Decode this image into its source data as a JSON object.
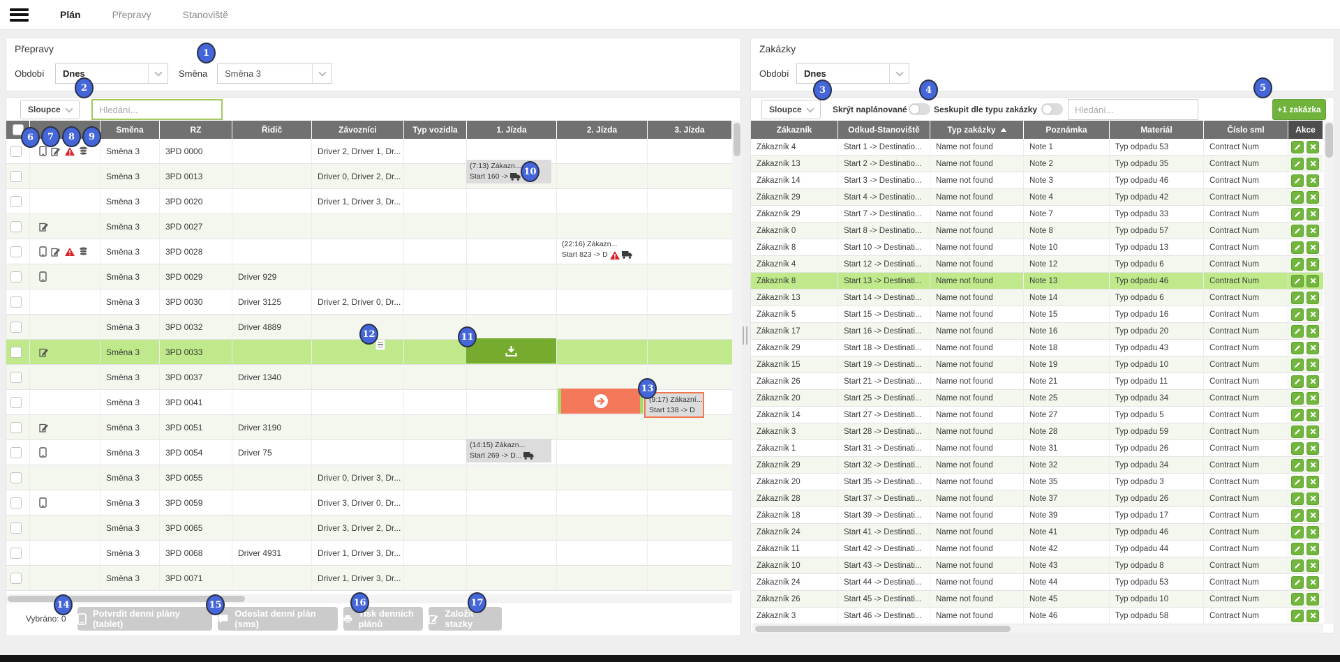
{
  "nav": {
    "tabs": [
      {
        "label": "Plán",
        "active": true
      },
      {
        "label": "Přepravy",
        "active": false
      },
      {
        "label": "Stanoviště",
        "active": false
      }
    ]
  },
  "left_panel": {
    "title": "Přepravy",
    "filters": {
      "period_label": "Období",
      "period_value": "Dnes",
      "shift_label": "Směna",
      "shift_value": "Směna 3"
    },
    "toolbar": {
      "columns_button": "Sloupce",
      "search_placeholder": "Hledání..."
    },
    "table": {
      "columns": [
        "",
        "",
        "Směna",
        "RZ",
        "Řidič",
        "Závozníci",
        "Typ vozidla",
        "1. Jízda",
        "2. Jízda",
        "3. Jízda"
      ],
      "rows": [
        {
          "shift": "Směna 3",
          "rz": "3PD 0000",
          "driver": "",
          "crew": "Driver 2, Driver 1, Dr...",
          "icons": [
            "tablet",
            "edit",
            "warning",
            "coins"
          ],
          "selected": false
        },
        {
          "shift": "Směna 3",
          "rz": "3PD 0013",
          "driver": "",
          "crew": "Driver 0, Driver 2, Dr...",
          "icons": [],
          "selected": false
        },
        {
          "shift": "Směna 3",
          "rz": "3PD 0020",
          "driver": "",
          "crew": "Driver 1, Driver 3, Dr...",
          "icons": [],
          "selected": false
        },
        {
          "shift": "Směna 3",
          "rz": "3PD 0027",
          "driver": "",
          "crew": "",
          "icons": [
            "edit"
          ],
          "selected": false
        },
        {
          "shift": "Směna 3",
          "rz": "3PD 0028",
          "driver": "",
          "crew": "",
          "icons": [
            "tablet",
            "edit",
            "warning",
            "coins"
          ],
          "selected": false
        },
        {
          "shift": "Směna 3",
          "rz": "3PD 0029",
          "driver": "Driver 929",
          "crew": "",
          "icons": [
            "tablet"
          ],
          "selected": false
        },
        {
          "shift": "Směna 3",
          "rz": "3PD 0030",
          "driver": "Driver 3125",
          "crew": "Driver 2, Driver 0, Dr...",
          "icons": [],
          "selected": false
        },
        {
          "shift": "Směna 3",
          "rz": "3PD 0032",
          "driver": "Driver 4889",
          "crew": "",
          "icons": [],
          "selected": false
        },
        {
          "shift": "Směna 3",
          "rz": "3PD 0033",
          "driver": "",
          "crew": "",
          "icons": [
            "edit"
          ],
          "selected": true
        },
        {
          "shift": "Směna 3",
          "rz": "3PD 0037",
          "driver": "Driver 1340",
          "crew": "",
          "icons": [],
          "selected": false
        },
        {
          "shift": "Směna 3",
          "rz": "3PD 0041",
          "driver": "",
          "crew": "",
          "icons": [],
          "selected": false
        },
        {
          "shift": "Směna 3",
          "rz": "3PD 0051",
          "driver": "Driver 3190",
          "crew": "",
          "icons": [
            "edit"
          ],
          "selected": false
        },
        {
          "shift": "Směna 3",
          "rz": "3PD 0054",
          "driver": "Driver 75",
          "crew": "",
          "icons": [
            "tablet"
          ],
          "selected": false
        },
        {
          "shift": "Směna 3",
          "rz": "3PD 0055",
          "driver": "",
          "crew": "Driver 0, Driver 3, Dr...",
          "icons": [],
          "selected": false
        },
        {
          "shift": "Směna 3",
          "rz": "3PD 0059",
          "driver": "",
          "crew": "Driver 3, Driver 0, Dr...",
          "icons": [
            "tablet"
          ],
          "selected": false
        },
        {
          "shift": "Směna 3",
          "rz": "3PD 0065",
          "driver": "",
          "crew": "Driver 3, Driver 2, Dr...",
          "icons": [],
          "selected": false
        },
        {
          "shift": "Směna 3",
          "rz": "3PD 0068",
          "driver": "Driver 4931",
          "crew": "Driver 1, Driver 3, Dr...",
          "icons": [],
          "selected": false
        },
        {
          "shift": "Směna 3",
          "rz": "3PD 0071",
          "driver": "",
          "crew": "Driver 1, Driver 3, Dr...",
          "icons": [],
          "selected": false
        }
      ]
    },
    "trip_overlays": [
      {
        "kind": "chip-gray",
        "line1": "(7:13) Zákazn...",
        "line2": "Start 160 -> ",
        "icons": [
          "truck"
        ]
      },
      {
        "kind": "text-plain",
        "line1": "(22:16) Zákazn...",
        "line2": "Start 823 -> D",
        "icons": [
          "warning",
          "truck"
        ]
      },
      {
        "kind": "drag-handle"
      },
      {
        "kind": "download-block"
      },
      {
        "kind": "transfer-block"
      },
      {
        "kind": "chip-bordered",
        "line1": "(9:17) Zákazní...",
        "line2": "Start 138 -> D",
        "icons": [
          "coins",
          "truck"
        ]
      },
      {
        "kind": "chip-gray",
        "line1": "(14:15) Zákazn...",
        "line2": "Start 269 -> D...",
        "icons": [
          "truck"
        ]
      }
    ],
    "footer": {
      "selected_label": "Vybráno: 0",
      "buttons": [
        {
          "label": "Potvrdit denní plány (tablet)",
          "icon": "tablet-icon"
        },
        {
          "label": "Odeslat denní plán (sms)",
          "icon": "chat-icon"
        },
        {
          "label": "Tisk denních plánů",
          "icon": "printer-icon"
        },
        {
          "label": "Založit stazky",
          "icon": "note-edit-icon"
        }
      ]
    }
  },
  "right_panel": {
    "title": "Zakázky",
    "filters": {
      "period_label": "Období",
      "period_value": "Dnes"
    },
    "toolbar": {
      "columns_button": "Sloupce",
      "hide_planned_label": "Skrýt naplánované",
      "group_by_type_label": "Seskupit dle typu zakázky",
      "search_placeholder": "Hledání...",
      "add_button": "+1 zakázka"
    },
    "table": {
      "columns": [
        "Zákazník",
        "Odkud-Stanoviště",
        "Typ zakázky",
        "Poznámka",
        "Materiál",
        "Číslo sml",
        "Akce"
      ],
      "sorted_column": "Typ zakázky",
      "rows": [
        {
          "customer": "Zákazník 4",
          "route": "Start 1 -> Destinatio...",
          "type": "Name not found",
          "note": "Note 1",
          "material": "Typ odpadu 53",
          "contract": "Contract Num",
          "selected": false
        },
        {
          "customer": "Zákazník 13",
          "route": "Start 2 -> Destinatio...",
          "type": "Name not found",
          "note": "Note 2",
          "material": "Typ odpadu 35",
          "contract": "Contract Num",
          "selected": false
        },
        {
          "customer": "Zákazník 14",
          "route": "Start 3 -> Destinatio...",
          "type": "Name not found",
          "note": "Note 3",
          "material": "Typ odpadu 46",
          "contract": "Contract Num",
          "selected": false
        },
        {
          "customer": "Zákazník 29",
          "route": "Start 4 -> Destinatio...",
          "type": "Name not found",
          "note": "Note 4",
          "material": "Typ odpadu 42",
          "contract": "Contract Num",
          "selected": false
        },
        {
          "customer": "Zákazník 29",
          "route": "Start 7 -> Destinatio...",
          "type": "Name not found",
          "note": "Note 7",
          "material": "Typ odpadu 33",
          "contract": "Contract Num",
          "selected": false
        },
        {
          "customer": "Zákazník 0",
          "route": "Start 8 -> Destinatio...",
          "type": "Name not found",
          "note": "Note 8",
          "material": "Typ odpadu 57",
          "contract": "Contract Num",
          "selected": false
        },
        {
          "customer": "Zákazník 8",
          "route": "Start 10 -> Destinati...",
          "type": "Name not found",
          "note": "Note 10",
          "material": "Typ odpadu 13",
          "contract": "Contract Num",
          "selected": false
        },
        {
          "customer": "Zákazník 4",
          "route": "Start 12 -> Destinati...",
          "type": "Name not found",
          "note": "Note 12",
          "material": "Typ odpadu 6",
          "contract": "Contract Num",
          "selected": false
        },
        {
          "customer": "Zákazník 8",
          "route": "Start 13 -> Destinati...",
          "type": "Name not found",
          "note": "Note 13",
          "material": "Typ odpadu 46",
          "contract": "Contract Num",
          "selected": true
        },
        {
          "customer": "Zákazník 13",
          "route": "Start 14 -> Destinati...",
          "type": "Name not found",
          "note": "Note 14",
          "material": "Typ odpadu 6",
          "contract": "Contract Num",
          "selected": false
        },
        {
          "customer": "Zákazník 5",
          "route": "Start 15 -> Destinati...",
          "type": "Name not found",
          "note": "Note 15",
          "material": "Typ odpadu 16",
          "contract": "Contract Num",
          "selected": false
        },
        {
          "customer": "Zákazník 17",
          "route": "Start 16 -> Destinati...",
          "type": "Name not found",
          "note": "Note 16",
          "material": "Typ odpadu 20",
          "contract": "Contract Num",
          "selected": false
        },
        {
          "customer": "Zákazník 29",
          "route": "Start 18 -> Destinati...",
          "type": "Name not found",
          "note": "Note 18",
          "material": "Typ odpadu 43",
          "contract": "Contract Num",
          "selected": false
        },
        {
          "customer": "Zákazník 15",
          "route": "Start 19 -> Destinati...",
          "type": "Name not found",
          "note": "Note 19",
          "material": "Typ odpadu 10",
          "contract": "Contract Num",
          "selected": false
        },
        {
          "customer": "Zákazník 26",
          "route": "Start 21 -> Destinati...",
          "type": "Name not found",
          "note": "Note 21",
          "material": "Typ odpadu 11",
          "contract": "Contract Num",
          "selected": false
        },
        {
          "customer": "Zákazník 20",
          "route": "Start 25 -> Destinati...",
          "type": "Name not found",
          "note": "Note 25",
          "material": "Typ odpadu 34",
          "contract": "Contract Num",
          "selected": false
        },
        {
          "customer": "Zákazník 14",
          "route": "Start 27 -> Destinati...",
          "type": "Name not found",
          "note": "Note 27",
          "material": "Typ odpadu 5",
          "contract": "Contract Num",
          "selected": false
        },
        {
          "customer": "Zákazník 3",
          "route": "Start 28 -> Destinati...",
          "type": "Name not found",
          "note": "Note 28",
          "material": "Typ odpadu 59",
          "contract": "Contract Num",
          "selected": false
        },
        {
          "customer": "Zákazník 1",
          "route": "Start 31 -> Destinati...",
          "type": "Name not found",
          "note": "Note 31",
          "material": "Typ odpadu 26",
          "contract": "Contract Num",
          "selected": false
        },
        {
          "customer": "Zákazník 29",
          "route": "Start 32 -> Destinati...",
          "type": "Name not found",
          "note": "Note 32",
          "material": "Typ odpadu 34",
          "contract": "Contract Num",
          "selected": false
        },
        {
          "customer": "Zákazník 20",
          "route": "Start 35 -> Destinati...",
          "type": "Name not found",
          "note": "Note 35",
          "material": "Typ odpadu 3",
          "contract": "Contract Num",
          "selected": false
        },
        {
          "customer": "Zákazník 28",
          "route": "Start 37 -> Destinati...",
          "type": "Name not found",
          "note": "Note 37",
          "material": "Typ odpadu 26",
          "contract": "Contract Num",
          "selected": false
        },
        {
          "customer": "Zákazník 18",
          "route": "Start 39 -> Destinati...",
          "type": "Name not found",
          "note": "Note 39",
          "material": "Typ odpadu 17",
          "contract": "Contract Num",
          "selected": false
        },
        {
          "customer": "Zákazník 24",
          "route": "Start 41 -> Destinati...",
          "type": "Name not found",
          "note": "Note 41",
          "material": "Typ odpadu 46",
          "contract": "Contract Num",
          "selected": false
        },
        {
          "customer": "Zákazník 11",
          "route": "Start 42 -> Destinati...",
          "type": "Name not found",
          "note": "Note 42",
          "material": "Typ odpadu 44",
          "contract": "Contract Num",
          "selected": false
        },
        {
          "customer": "Zákazník 10",
          "route": "Start 43 -> Destinati...",
          "type": "Name not found",
          "note": "Note 43",
          "material": "Typ odpadu 8",
          "contract": "Contract Num",
          "selected": false
        },
        {
          "customer": "Zákazník 24",
          "route": "Start 44 -> Destinati...",
          "type": "Name not found",
          "note": "Note 44",
          "material": "Typ odpadu 53",
          "contract": "Contract Num",
          "selected": false
        },
        {
          "customer": "Zákazník 26",
          "route": "Start 45 -> Destinati...",
          "type": "Name not found",
          "note": "Note 45",
          "material": "Typ odpadu 10",
          "contract": "Contract Num",
          "selected": false
        },
        {
          "customer": "Zákazník 3",
          "route": "Start 46 -> Destinati...",
          "type": "Name not found",
          "note": "Note 46",
          "material": "Typ odpadu 58",
          "contract": "Contract Num",
          "selected": false
        }
      ]
    }
  },
  "annotations": [
    "1",
    "2",
    "3",
    "4",
    "5",
    "6",
    "7",
    "8",
    "9",
    "10",
    "11",
    "12",
    "13",
    "14",
    "15",
    "16",
    "17"
  ],
  "colors": {
    "accent_green": "#6fb33c",
    "selected_row_green": "#bfe98a",
    "block_green": "#76ab2f",
    "warning_orange": "#f4795b",
    "chip_border_orange": "#f4764f",
    "annotation_blue": "#4466d9",
    "table_header_gray": "#717171",
    "warning_red": "#d8232a"
  }
}
